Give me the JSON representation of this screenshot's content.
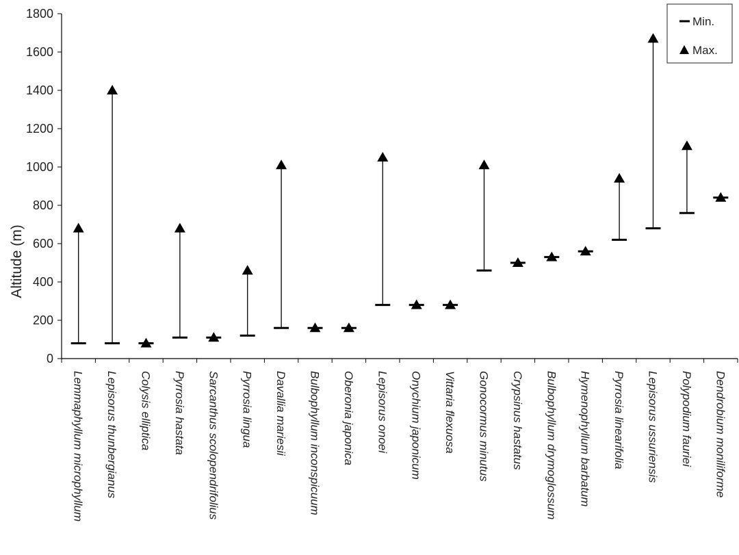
{
  "chart_data": {
    "type": "range",
    "ylabel": "Altitude (m)",
    "ylim": [
      0,
      1800
    ],
    "yticks": [
      0,
      200,
      400,
      600,
      800,
      1000,
      1200,
      1400,
      1600,
      1800
    ],
    "grid": false,
    "legend_position": "top-right",
    "legend": {
      "min_label": "Min.",
      "max_label": "Max."
    },
    "categories": [
      "Lemmaphyllum microphyllum",
      "Lepisorus thunbergianus",
      "Colysis elliptica",
      "Pyrrosia hastata",
      "Sarcanthus scolopendrifolius",
      "Pyrrosia lingua",
      "Davallia mariesii",
      "Bulbophyllum inconspicuum",
      "Oberonia japonica",
      "Lepisorus onoei",
      "Onychium japonicum",
      "Vittaria flexuosa",
      "Gonocormus minutus",
      "Crypsinus hastatus",
      "Bulbophyllum drymoglossum",
      "Hymenophyllum barbatum",
      "Pyrrosia linearifolia",
      "Lepisorus ussuriensis",
      "Polypodium fauriei",
      "Dendrobium moniliforme"
    ],
    "series": [
      {
        "name": "Min.",
        "values": [
          80,
          80,
          80,
          110,
          110,
          120,
          160,
          160,
          160,
          280,
          280,
          280,
          460,
          500,
          530,
          560,
          620,
          680,
          760,
          840
        ]
      },
      {
        "name": "Max.",
        "values": [
          680,
          1400,
          80,
          680,
          110,
          460,
          1010,
          160,
          160,
          1050,
          280,
          280,
          1010,
          500,
          530,
          560,
          940,
          1670,
          1110,
          840
        ]
      }
    ]
  }
}
